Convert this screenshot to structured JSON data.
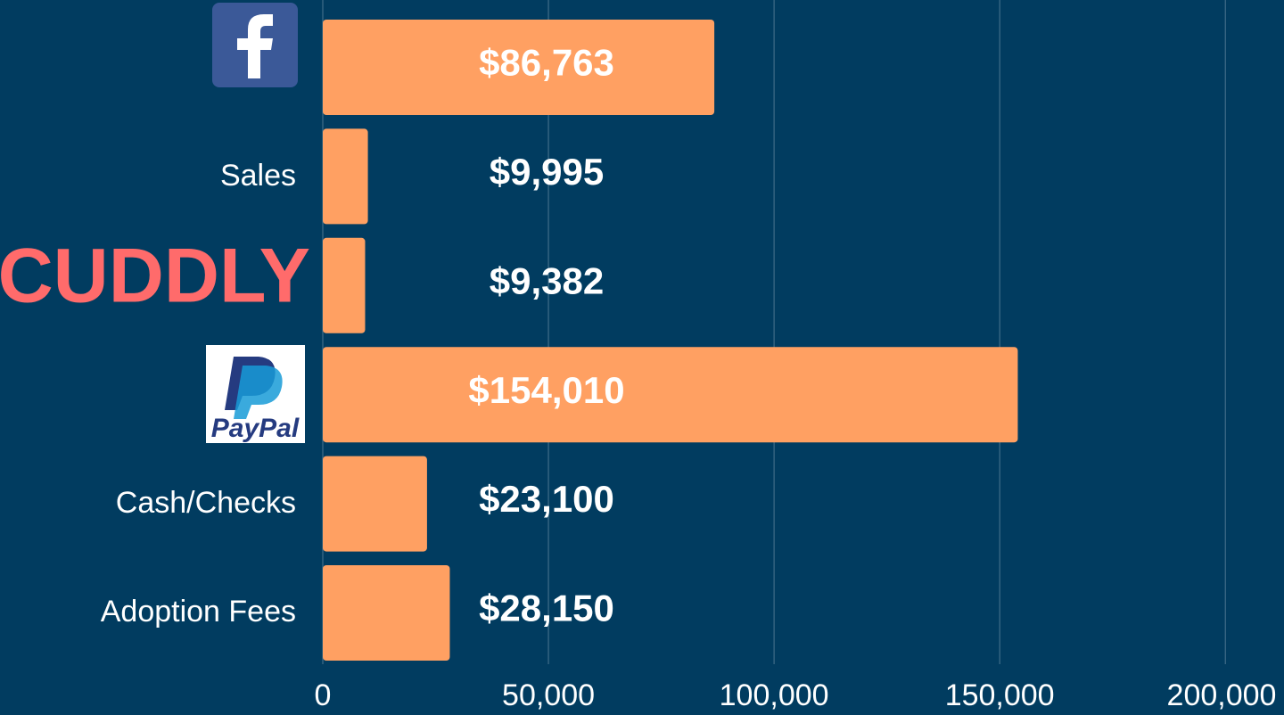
{
  "chart_data": {
    "type": "bar",
    "orientation": "horizontal",
    "categories": [
      null,
      "Sales",
      "CUDDLY",
      "PayPal",
      "Cash/Checks",
      "Adoption Fees"
    ],
    "values": [
      86763,
      9995,
      9382,
      154010,
      23100,
      28150
    ],
    "value_labels": [
      "$86,763",
      "$9,995",
      "$9,382",
      "$154,010",
      "$23,100",
      "$28,150"
    ],
    "color": "#ffa062",
    "xlim": [
      0,
      213000
    ],
    "xticks": [
      0,
      {
        "value": 50000,
        "label": "50,000"
      },
      {
        "value": 100000,
        "label": "100,000"
      },
      {
        "value": 150000,
        "label": "150,000"
      },
      {
        "value": 200000,
        "label": "200,000"
      }
    ],
    "grid": true
  }
}
